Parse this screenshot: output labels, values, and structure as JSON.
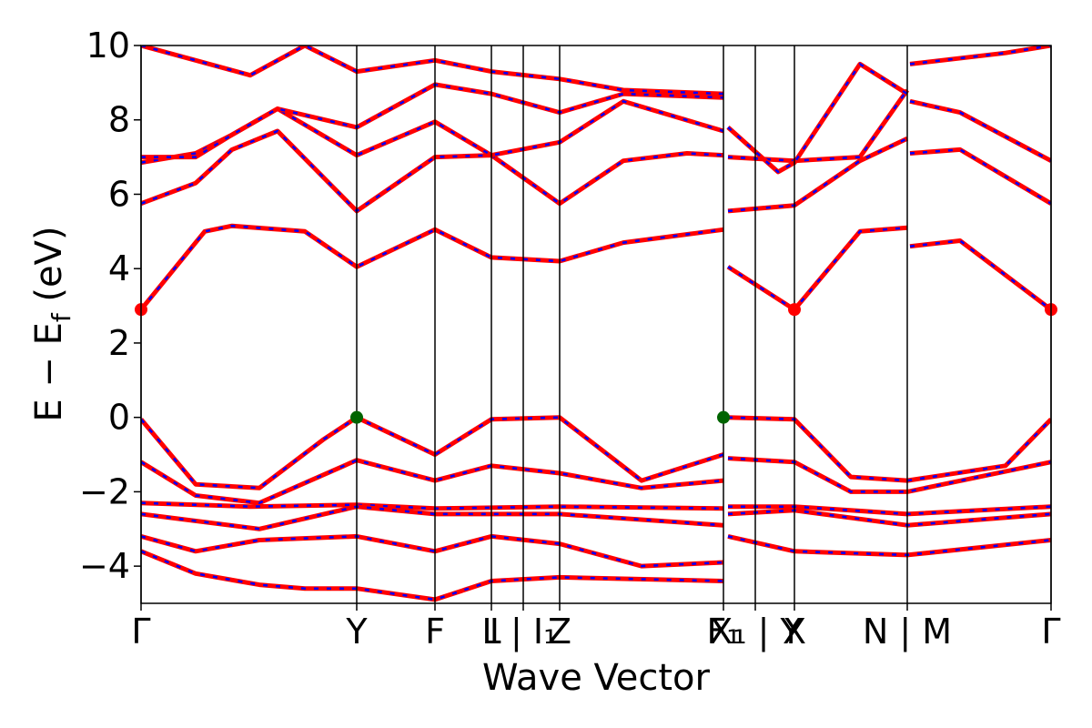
{
  "chart_data": {
    "type": "line",
    "title": "",
    "xlabel": "Wave Vector",
    "ylabel": "E − E_f (eV)",
    "ylabel_main": "E − E",
    "ylabel_sub": "f",
    "ylabel_tail": " (eV)",
    "ylim": [
      -5,
      10
    ],
    "yticks": [
      -4,
      -2,
      0,
      2,
      4,
      6,
      8,
      10
    ],
    "ytick_labels": [
      "−4",
      "−2",
      "0",
      "2",
      "4",
      "6",
      "8",
      "10"
    ],
    "x_range": [
      0,
      1
    ],
    "kpoints": [
      {
        "label": "Γ",
        "x": 0.0
      },
      {
        "label": "Y",
        "x": 0.237
      },
      {
        "label": "F",
        "x": 0.323
      },
      {
        "label": "L",
        "x": 0.385
      },
      {
        "label": "I | I₁",
        "x": 0.42
      },
      {
        "label": "Z",
        "x": 0.46
      },
      {
        "label": "F₁",
        "x": 0.64
      },
      {
        "label": "X₁ | Y",
        "x": 0.675
      },
      {
        "label": "X",
        "x": 0.718
      },
      {
        "label": "N | M",
        "x": 0.842
      },
      {
        "label": "Γ",
        "x": 1.0
      }
    ],
    "series": [
      {
        "color": "#ff0000",
        "style": "solid",
        "points": [
          [
            0.0,
            -0.05
          ],
          [
            0.06,
            -1.8
          ],
          [
            0.13,
            -1.9
          ],
          [
            0.2,
            -0.6
          ],
          [
            0.237,
            0.0
          ],
          [
            0.323,
            -1.0
          ],
          [
            0.385,
            -0.05
          ],
          [
            0.46,
            0.0
          ],
          [
            0.55,
            -1.7
          ],
          [
            0.64,
            -1.0
          ]
        ]
      },
      {
        "color": "#ff0000",
        "style": "solid",
        "points": [
          [
            0.645,
            0.0
          ],
          [
            0.718,
            -0.05
          ],
          [
            0.78,
            -1.6
          ],
          [
            0.842,
            -1.7
          ],
          [
            0.95,
            -1.3
          ],
          [
            1.0,
            -0.05
          ]
        ]
      },
      {
        "color": "#ff0000",
        "style": "solid",
        "points": [
          [
            0.0,
            -1.2
          ],
          [
            0.06,
            -2.1
          ],
          [
            0.13,
            -2.3
          ],
          [
            0.237,
            -1.15
          ],
          [
            0.323,
            -1.7
          ],
          [
            0.385,
            -1.3
          ],
          [
            0.46,
            -1.5
          ],
          [
            0.55,
            -1.9
          ],
          [
            0.64,
            -1.7
          ]
        ]
      },
      {
        "color": "#ff0000",
        "style": "solid",
        "points": [
          [
            0.645,
            -1.1
          ],
          [
            0.718,
            -1.2
          ],
          [
            0.78,
            -2.0
          ],
          [
            0.842,
            -2.0
          ],
          [
            1.0,
            -1.2
          ]
        ]
      },
      {
        "color": "#ff0000",
        "style": "solid",
        "points": [
          [
            0.0,
            -2.3
          ],
          [
            0.12,
            -2.4
          ],
          [
            0.237,
            -2.35
          ],
          [
            0.323,
            -2.45
          ],
          [
            0.46,
            -2.4
          ],
          [
            0.64,
            -2.45
          ]
        ]
      },
      {
        "color": "#ff0000",
        "style": "solid",
        "points": [
          [
            0.645,
            -2.4
          ],
          [
            0.718,
            -2.4
          ],
          [
            0.842,
            -2.6
          ],
          [
            1.0,
            -2.4
          ]
        ]
      },
      {
        "color": "#ff0000",
        "style": "solid",
        "points": [
          [
            0.0,
            -2.6
          ],
          [
            0.13,
            -3.0
          ],
          [
            0.237,
            -2.4
          ],
          [
            0.323,
            -2.6
          ],
          [
            0.46,
            -2.6
          ],
          [
            0.64,
            -2.9
          ]
        ]
      },
      {
        "color": "#ff0000",
        "style": "solid",
        "points": [
          [
            0.645,
            -2.6
          ],
          [
            0.718,
            -2.5
          ],
          [
            0.842,
            -2.9
          ],
          [
            1.0,
            -2.6
          ]
        ]
      },
      {
        "color": "#ff0000",
        "style": "solid",
        "points": [
          [
            0.0,
            -3.2
          ],
          [
            0.06,
            -3.6
          ],
          [
            0.13,
            -3.3
          ],
          [
            0.237,
            -3.2
          ],
          [
            0.323,
            -3.6
          ],
          [
            0.385,
            -3.2
          ],
          [
            0.46,
            -3.4
          ],
          [
            0.55,
            -4.0
          ],
          [
            0.64,
            -3.9
          ]
        ]
      },
      {
        "color": "#ff0000",
        "style": "solid",
        "points": [
          [
            0.645,
            -3.2
          ],
          [
            0.718,
            -3.6
          ],
          [
            0.842,
            -3.7
          ],
          [
            1.0,
            -3.3
          ]
        ]
      },
      {
        "color": "#ff0000",
        "style": "solid",
        "points": [
          [
            0.0,
            -3.6
          ],
          [
            0.06,
            -4.2
          ],
          [
            0.13,
            -4.5
          ],
          [
            0.18,
            -4.6
          ],
          [
            0.237,
            -4.6
          ],
          [
            0.323,
            -4.9
          ],
          [
            0.385,
            -4.4
          ],
          [
            0.46,
            -4.3
          ],
          [
            0.64,
            -4.4
          ]
        ]
      },
      {
        "color": "#ff0000",
        "style": "solid",
        "points": [
          [
            0.0,
            2.9
          ],
          [
            0.07,
            5.0
          ],
          [
            0.1,
            5.15
          ],
          [
            0.18,
            5.0
          ],
          [
            0.237,
            4.05
          ],
          [
            0.323,
            5.05
          ],
          [
            0.385,
            4.3
          ],
          [
            0.46,
            4.2
          ],
          [
            0.53,
            4.7
          ],
          [
            0.64,
            5.05
          ]
        ]
      },
      {
        "color": "#ff0000",
        "style": "solid",
        "points": [
          [
            0.645,
            4.05
          ],
          [
            0.718,
            2.9
          ],
          [
            0.79,
            5.0
          ],
          [
            0.842,
            5.1
          ]
        ]
      },
      {
        "color": "#ff0000",
        "style": "solid",
        "points": [
          [
            0.845,
            4.6
          ],
          [
            0.9,
            4.75
          ],
          [
            1.0,
            2.9
          ]
        ]
      },
      {
        "color": "#ff0000",
        "style": "solid",
        "points": [
          [
            0.0,
            5.75
          ],
          [
            0.06,
            6.3
          ],
          [
            0.1,
            7.2
          ],
          [
            0.15,
            7.7
          ],
          [
            0.237,
            5.55
          ],
          [
            0.323,
            7.0
          ],
          [
            0.385,
            7.05
          ],
          [
            0.46,
            5.75
          ],
          [
            0.53,
            6.9
          ],
          [
            0.6,
            7.1
          ],
          [
            0.64,
            7.05
          ]
        ]
      },
      {
        "color": "#ff0000",
        "style": "solid",
        "points": [
          [
            0.645,
            5.55
          ],
          [
            0.718,
            5.7
          ],
          [
            0.79,
            6.9
          ],
          [
            0.842,
            7.5
          ]
        ]
      },
      {
        "color": "#ff0000",
        "style": "solid",
        "points": [
          [
            0.845,
            7.1
          ],
          [
            0.9,
            7.2
          ],
          [
            1.0,
            5.75
          ]
        ]
      },
      {
        "color": "#ff0000",
        "style": "solid",
        "points": [
          [
            0.0,
            6.85
          ],
          [
            0.06,
            7.1
          ],
          [
            0.1,
            7.6
          ],
          [
            0.15,
            8.3
          ],
          [
            0.237,
            7.05
          ],
          [
            0.323,
            7.95
          ],
          [
            0.385,
            7.05
          ],
          [
            0.46,
            7.4
          ],
          [
            0.53,
            8.5
          ],
          [
            0.64,
            7.7
          ]
        ]
      },
      {
        "color": "#ff0000",
        "style": "solid",
        "points": [
          [
            0.645,
            7.0
          ],
          [
            0.718,
            6.9
          ],
          [
            0.79,
            7.0
          ],
          [
            0.842,
            8.8
          ]
        ]
      },
      {
        "color": "#ff0000",
        "style": "solid",
        "points": [
          [
            0.845,
            8.5
          ],
          [
            0.9,
            8.2
          ],
          [
            1.0,
            6.9
          ]
        ]
      },
      {
        "color": "#ff0000",
        "style": "solid",
        "points": [
          [
            0.0,
            7.0
          ],
          [
            0.06,
            7.0
          ],
          [
            0.1,
            7.6
          ],
          [
            0.15,
            8.3
          ],
          [
            0.237,
            7.8
          ],
          [
            0.323,
            8.95
          ],
          [
            0.385,
            8.7
          ],
          [
            0.46,
            8.2
          ],
          [
            0.53,
            8.7
          ],
          [
            0.64,
            8.6
          ]
        ]
      },
      {
        "color": "#ff0000",
        "style": "solid",
        "points": [
          [
            0.645,
            7.8
          ],
          [
            0.7,
            6.6
          ],
          [
            0.718,
            6.85
          ],
          [
            0.79,
            9.5
          ],
          [
            0.842,
            8.7
          ]
        ]
      },
      {
        "color": "#ff0000",
        "style": "solid",
        "points": [
          [
            0.845,
            9.5
          ],
          [
            0.95,
            9.8
          ],
          [
            1.0,
            10.0
          ]
        ]
      },
      {
        "color": "#ff0000",
        "style": "solid",
        "points": [
          [
            0.0,
            10.0
          ],
          [
            0.06,
            9.6
          ],
          [
            0.12,
            9.2
          ],
          [
            0.18,
            10.0
          ],
          [
            0.237,
            9.3
          ],
          [
            0.323,
            9.6
          ],
          [
            0.385,
            9.3
          ],
          [
            0.46,
            9.1
          ],
          [
            0.53,
            8.8
          ],
          [
            0.64,
            8.7
          ]
        ]
      }
    ],
    "markers": [
      {
        "color": "#ff0000",
        "x": 0.0,
        "y": 2.9
      },
      {
        "color": "#ff0000",
        "x": 0.718,
        "y": 2.9
      },
      {
        "color": "#ff0000",
        "x": 1.0,
        "y": 2.9
      },
      {
        "color": "#006400",
        "x": 0.237,
        "y": 0.0
      },
      {
        "color": "#006400",
        "x": 0.64,
        "y": 0.0
      }
    ],
    "grid": false,
    "legend": "none"
  }
}
